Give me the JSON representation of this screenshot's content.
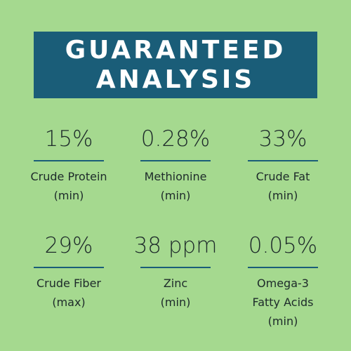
{
  "header": {
    "title": [
      "GUARANTEED",
      "ANALYSIS"
    ]
  },
  "items": [
    {
      "value": "15%",
      "label": [
        "Crude Protein",
        "(min)"
      ]
    },
    {
      "value": "0.28%",
      "label": [
        "Methionine",
        "(min)"
      ]
    },
    {
      "value": "33%",
      "label": [
        "Crude Fat",
        "(min)"
      ]
    },
    {
      "value": "29%",
      "label": [
        "Crude Fiber",
        "(max)"
      ]
    },
    {
      "value": "38 ppm",
      "label": [
        "Zinc",
        "(min)"
      ]
    },
    {
      "value": "0.05%",
      "label": [
        "Omega-3",
        "Fatty Acids",
        "(min)"
      ]
    }
  ]
}
